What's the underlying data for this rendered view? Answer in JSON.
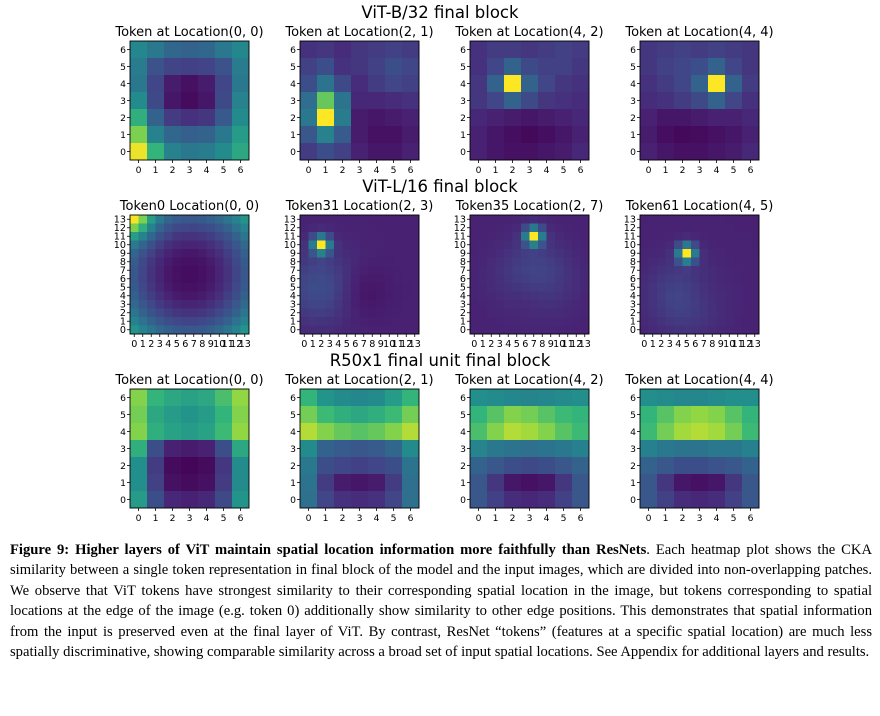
{
  "chart_data": [
    {
      "type": "heatmap",
      "group_title": "ViT-B/32 final block",
      "grid_size": 7,
      "colormap": "viridis",
      "panels": [
        {
          "title": "Token at Location(0, 0)",
          "peak": [
            0,
            0
          ],
          "pattern": "corner",
          "values": [
            [
              0.58,
              0.5,
              0.42,
              0.4,
              0.42,
              0.5,
              0.58
            ],
            [
              0.52,
              0.32,
              0.25,
              0.24,
              0.25,
              0.32,
              0.52
            ],
            [
              0.5,
              0.26,
              0.1,
              0.06,
              0.1,
              0.26,
              0.5
            ],
            [
              0.6,
              0.28,
              0.08,
              0.04,
              0.08,
              0.28,
              0.55
            ],
            [
              0.72,
              0.4,
              0.22,
              0.18,
              0.2,
              0.35,
              0.6
            ],
            [
              0.85,
              0.55,
              0.42,
              0.38,
              0.4,
              0.5,
              0.66
            ],
            [
              0.98,
              0.74,
              0.55,
              0.5,
              0.52,
              0.6,
              0.7
            ]
          ]
        },
        {
          "title": "Token at Location(2, 1)",
          "peak": [
            1,
            2
          ],
          "pattern": "peak",
          "values": [
            [
              0.18,
              0.2,
              0.16,
              0.2,
              0.22,
              0.24,
              0.22
            ],
            [
              0.24,
              0.3,
              0.18,
              0.2,
              0.24,
              0.3,
              0.26
            ],
            [
              0.3,
              0.48,
              0.28,
              0.16,
              0.22,
              0.26,
              0.24
            ],
            [
              0.45,
              0.82,
              0.48,
              0.14,
              0.14,
              0.16,
              0.18
            ],
            [
              0.5,
              1.0,
              0.52,
              0.1,
              0.08,
              0.1,
              0.12
            ],
            [
              0.34,
              0.55,
              0.36,
              0.1,
              0.06,
              0.06,
              0.1
            ],
            [
              0.22,
              0.3,
              0.24,
              0.12,
              0.08,
              0.08,
              0.12
            ]
          ]
        },
        {
          "title": "Token at Location(4, 2)",
          "peak": [
            2,
            4
          ],
          "pattern": "peak",
          "values": [
            [
              0.18,
              0.22,
              0.22,
              0.2,
              0.22,
              0.24,
              0.22
            ],
            [
              0.18,
              0.26,
              0.4,
              0.28,
              0.24,
              0.24,
              0.2
            ],
            [
              0.2,
              0.4,
              1.0,
              0.4,
              0.26,
              0.2,
              0.18
            ],
            [
              0.2,
              0.26,
              0.4,
              0.28,
              0.2,
              0.18,
              0.16
            ],
            [
              0.14,
              0.12,
              0.1,
              0.08,
              0.1,
              0.12,
              0.14
            ],
            [
              0.12,
              0.08,
              0.05,
              0.03,
              0.05,
              0.08,
              0.12
            ],
            [
              0.12,
              0.08,
              0.06,
              0.06,
              0.08,
              0.1,
              0.14
            ]
          ]
        },
        {
          "title": "Token at Location(4, 4)",
          "peak": [
            4,
            4
          ],
          "pattern": "peak",
          "values": [
            [
              0.2,
              0.22,
              0.24,
              0.22,
              0.24,
              0.22,
              0.2
            ],
            [
              0.2,
              0.24,
              0.26,
              0.3,
              0.4,
              0.26,
              0.2
            ],
            [
              0.18,
              0.22,
              0.26,
              0.4,
              1.0,
              0.4,
              0.22
            ],
            [
              0.16,
              0.18,
              0.22,
              0.28,
              0.4,
              0.26,
              0.18
            ],
            [
              0.12,
              0.08,
              0.08,
              0.1,
              0.12,
              0.12,
              0.14
            ],
            [
              0.1,
              0.05,
              0.03,
              0.04,
              0.06,
              0.08,
              0.12
            ],
            [
              0.12,
              0.08,
              0.06,
              0.06,
              0.08,
              0.1,
              0.14
            ]
          ]
        }
      ]
    },
    {
      "type": "heatmap",
      "group_title": "ViT-L/16 final block",
      "grid_size": 14,
      "colormap": "viridis",
      "panels": [
        {
          "title": "Token0 Location(0, 0)",
          "peak": [
            0,
            0
          ],
          "pattern": "corner"
        },
        {
          "title": "Token31 Location(2, 3)",
          "peak": [
            2,
            3
          ],
          "pattern": "peak"
        },
        {
          "title": "Token35 Location(2, 7)",
          "peak": [
            7,
            2
          ],
          "pattern": "peak"
        },
        {
          "title": "Token61 Location(4, 5)",
          "peak": [
            5,
            4
          ],
          "pattern": "peak"
        }
      ]
    },
    {
      "type": "heatmap",
      "group_title": "R50x1 final unit final block",
      "grid_size": 7,
      "colormap": "viridis",
      "panels": [
        {
          "title": "Token at Location(0, 0)",
          "peak": [
            0,
            0
          ],
          "pattern": "resnet",
          "values": [
            [
              0.86,
              0.74,
              0.7,
              0.68,
              0.7,
              0.78,
              0.88
            ],
            [
              0.84,
              0.7,
              0.66,
              0.64,
              0.66,
              0.74,
              0.86
            ],
            [
              0.86,
              0.72,
              0.68,
              0.66,
              0.68,
              0.76,
              0.88
            ],
            [
              0.72,
              0.3,
              0.12,
              0.1,
              0.12,
              0.3,
              0.7
            ],
            [
              0.62,
              0.22,
              0.04,
              0.02,
              0.04,
              0.2,
              0.6
            ],
            [
              0.62,
              0.24,
              0.06,
              0.04,
              0.06,
              0.22,
              0.6
            ],
            [
              0.66,
              0.3,
              0.14,
              0.12,
              0.14,
              0.28,
              0.64
            ]
          ]
        },
        {
          "title": "Token at Location(2, 1)",
          "peak": [
            1,
            2
          ],
          "pattern": "resnet",
          "values": [
            [
              0.74,
              0.64,
              0.6,
              0.58,
              0.6,
              0.66,
              0.74
            ],
            [
              0.84,
              0.76,
              0.72,
              0.7,
              0.72,
              0.76,
              0.84
            ],
            [
              0.92,
              0.86,
              0.82,
              0.8,
              0.82,
              0.86,
              0.92
            ],
            [
              0.6,
              0.4,
              0.36,
              0.34,
              0.36,
              0.42,
              0.6
            ],
            [
              0.5,
              0.3,
              0.26,
              0.24,
              0.26,
              0.3,
              0.48
            ],
            [
              0.48,
              0.22,
              0.1,
              0.08,
              0.1,
              0.22,
              0.46
            ],
            [
              0.46,
              0.26,
              0.18,
              0.16,
              0.18,
              0.26,
              0.46
            ]
          ]
        },
        {
          "title": "Token at Location(4, 2)",
          "peak": [
            2,
            4
          ],
          "pattern": "resnet",
          "values": [
            [
              0.62,
              0.6,
              0.58,
              0.56,
              0.58,
              0.6,
              0.62
            ],
            [
              0.74,
              0.8,
              0.86,
              0.84,
              0.8,
              0.76,
              0.74
            ],
            [
              0.78,
              0.86,
              0.92,
              0.9,
              0.86,
              0.8,
              0.76
            ],
            [
              0.56,
              0.5,
              0.48,
              0.46,
              0.48,
              0.5,
              0.54
            ],
            [
              0.4,
              0.34,
              0.3,
              0.28,
              0.3,
              0.34,
              0.4
            ],
            [
              0.34,
              0.2,
              0.08,
              0.06,
              0.08,
              0.2,
              0.34
            ],
            [
              0.34,
              0.24,
              0.16,
              0.14,
              0.16,
              0.24,
              0.34
            ]
          ]
        },
        {
          "title": "Token at Location(4, 4)",
          "peak": [
            4,
            4
          ],
          "pattern": "resnet",
          "values": [
            [
              0.62,
              0.6,
              0.58,
              0.58,
              0.6,
              0.62,
              0.62
            ],
            [
              0.74,
              0.8,
              0.86,
              0.88,
              0.86,
              0.8,
              0.74
            ],
            [
              0.76,
              0.84,
              0.9,
              0.92,
              0.9,
              0.84,
              0.76
            ],
            [
              0.54,
              0.5,
              0.48,
              0.48,
              0.5,
              0.5,
              0.54
            ],
            [
              0.4,
              0.34,
              0.3,
              0.3,
              0.32,
              0.34,
              0.4
            ],
            [
              0.34,
              0.2,
              0.08,
              0.06,
              0.08,
              0.2,
              0.34
            ],
            [
              0.34,
              0.24,
              0.16,
              0.14,
              0.16,
              0.24,
              0.34
            ]
          ]
        }
      ]
    }
  ],
  "caption": {
    "lead": "Figure 9: Higher layers of ViT maintain spatial location information more faithfully than ResNets",
    "body": ". Each heatmap plot shows the CKA similarity between a single token representation in final block of the model and the input images, which are divided into non-overlapping patches. We observe that ViT tokens have strongest similarity to their corresponding spatial location in the image, but tokens corresponding to spatial locations at the edge of the image (e.g. token 0) additionally show similarity to other edge positions. This demonstrates that spatial information from the input is preserved even at the final layer of ViT. By contrast, ResNet “tokens” (features at a specific spatial location) are much less spatially discriminative, showing comparable similarity across a broad set of input spatial locations. See Appendix for additional layers and results."
  }
}
